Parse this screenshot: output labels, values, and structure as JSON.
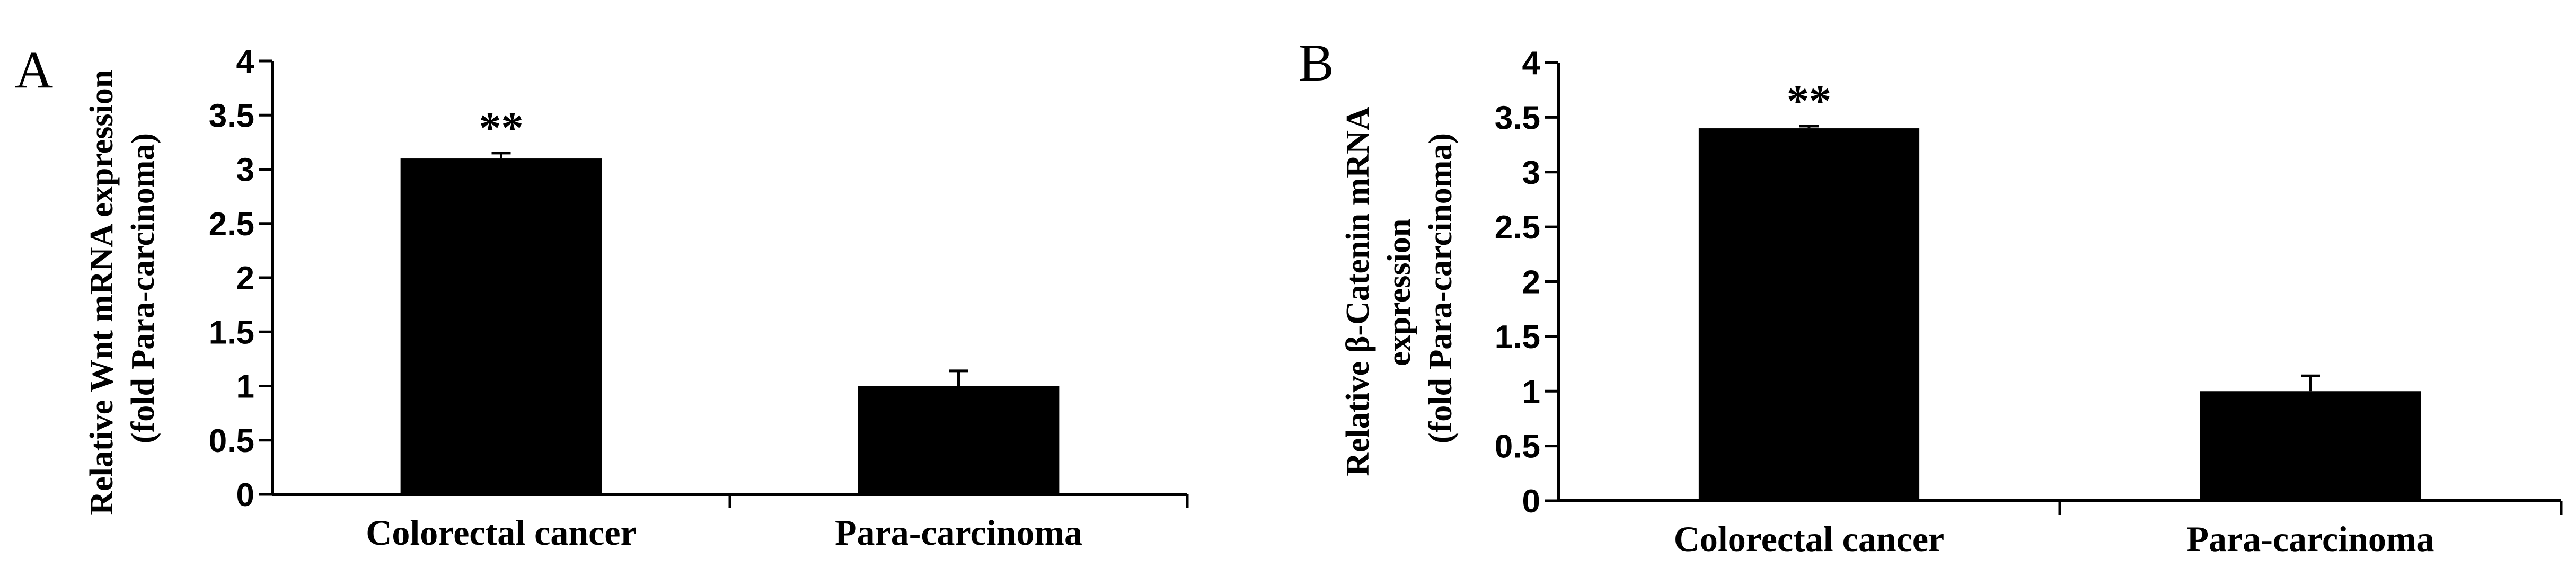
{
  "chart_data": [
    {
      "type": "bar",
      "panel_label": "A",
      "ylabel_lines": [
        "Relative Wnt mRNA expression",
        "(fold Para-carcinoma)"
      ],
      "categories": [
        "Colorectal cancer",
        "Para-carcinoma"
      ],
      "values": [
        3.1,
        1.0
      ],
      "errors": [
        0.05,
        0.14
      ],
      "annotations": [
        "**",
        ""
      ],
      "ylim": [
        0,
        4
      ],
      "yticks": [
        "0",
        "0.5",
        "1",
        "1.5",
        "2",
        "2.5",
        "3",
        "3.5",
        "4"
      ],
      "bar_color": "#000000",
      "grid": false
    },
    {
      "type": "bar",
      "panel_label": "B",
      "ylabel_lines": [
        "Relative β-Catenin mRNA",
        "expression",
        "(fold Para-carcinoma)"
      ],
      "categories": [
        "Colorectal cancer",
        "Para-carcinoma"
      ],
      "values": [
        3.4,
        1.0
      ],
      "errors": [
        0.02,
        0.14
      ],
      "annotations": [
        "**",
        ""
      ],
      "ylim": [
        0,
        4
      ],
      "yticks": [
        "0",
        "0.5",
        "1",
        "1.5",
        "2",
        "2.5",
        "3",
        "3.5",
        "4"
      ],
      "bar_color": "#000000",
      "grid": false
    }
  ]
}
